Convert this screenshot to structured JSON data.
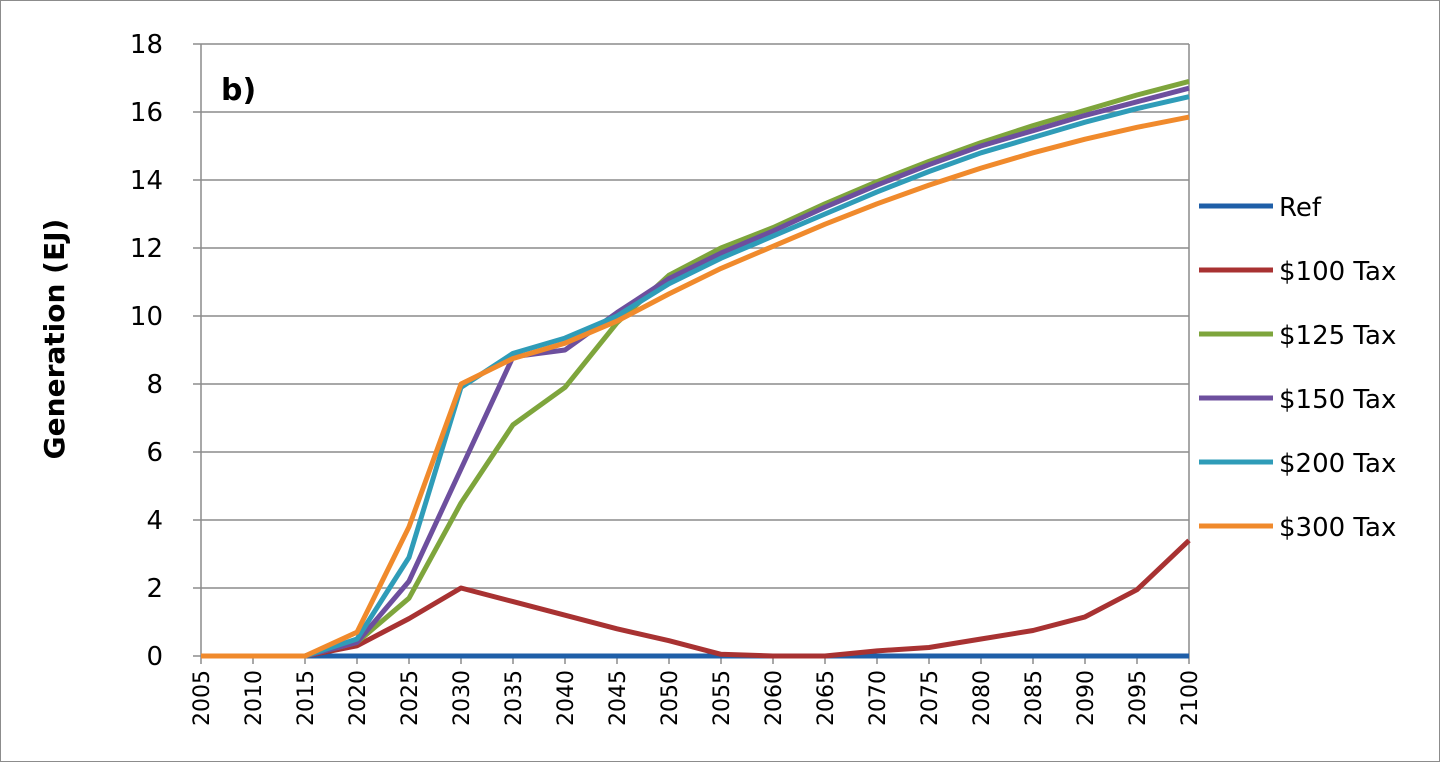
{
  "chart_data": {
    "type": "line",
    "panel_label": "b)",
    "ylabel": "Generation (EJ)",
    "xlabel": "",
    "ylim": [
      0,
      18
    ],
    "y_ticks": [
      0,
      2,
      4,
      6,
      8,
      10,
      12,
      14,
      16,
      18
    ],
    "grid": true,
    "legend_position": "right",
    "x": [
      2005,
      2010,
      2015,
      2020,
      2025,
      2030,
      2035,
      2040,
      2045,
      2050,
      2055,
      2060,
      2065,
      2070,
      2075,
      2080,
      2085,
      2090,
      2095,
      2100
    ],
    "series": [
      {
        "name": "Ref",
        "color": "#1f5fa8",
        "values": [
          0,
          0,
          0,
          0,
          0,
          0,
          0,
          0,
          0,
          0,
          0,
          0,
          0,
          0,
          0,
          0,
          0,
          0,
          0,
          0
        ]
      },
      {
        "name": "$100 Tax",
        "color": "#a83232",
        "values": [
          0,
          0,
          0,
          0.3,
          1.1,
          2.0,
          1.6,
          1.2,
          0.8,
          0.45,
          0.05,
          0,
          0,
          0.15,
          0.25,
          0.5,
          0.75,
          1.15,
          1.95,
          3.4
        ]
      },
      {
        "name": "$125 Tax",
        "color": "#7ea53c",
        "values": [
          0,
          0,
          0,
          0.4,
          1.7,
          4.5,
          6.8,
          7.9,
          9.8,
          11.2,
          12.0,
          12.6,
          13.3,
          13.95,
          14.55,
          15.1,
          15.6,
          16.05,
          16.5,
          16.9
        ]
      },
      {
        "name": "$150 Tax",
        "color": "#6d4f9e",
        "values": [
          0,
          0,
          0,
          0.4,
          2.2,
          5.5,
          8.8,
          9.0,
          10.1,
          11.1,
          11.85,
          12.5,
          13.2,
          13.85,
          14.45,
          15.0,
          15.45,
          15.9,
          16.3,
          16.7
        ]
      },
      {
        "name": "$200 Tax",
        "color": "#2f9cb8",
        "values": [
          0,
          0,
          0,
          0.5,
          2.9,
          7.9,
          8.9,
          9.35,
          10.0,
          10.95,
          11.7,
          12.35,
          13.0,
          13.65,
          14.25,
          14.8,
          15.25,
          15.7,
          16.1,
          16.45
        ]
      },
      {
        "name": "$300 Tax",
        "color": "#f08a2c",
        "values": [
          0,
          0,
          0,
          0.7,
          3.8,
          8.0,
          8.75,
          9.2,
          9.85,
          10.65,
          11.4,
          12.05,
          12.7,
          13.3,
          13.85,
          14.35,
          14.8,
          15.2,
          15.55,
          15.85
        ]
      }
    ]
  }
}
